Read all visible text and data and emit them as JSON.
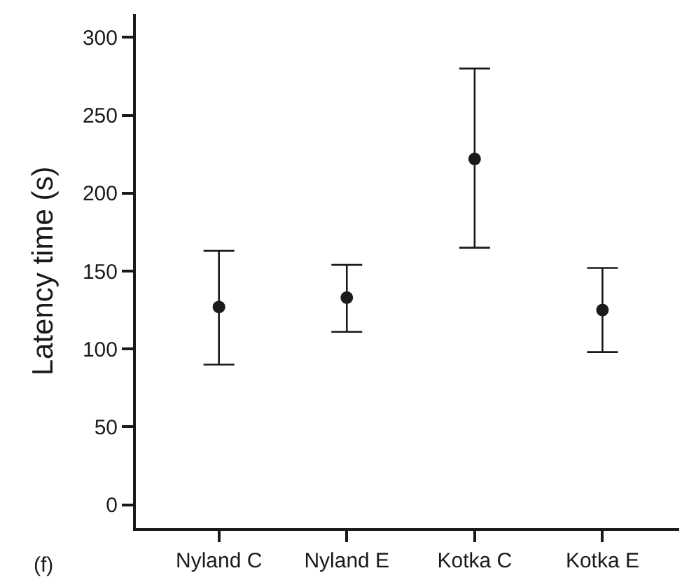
{
  "chart_data": {
    "type": "scatter",
    "ylabel": "Latency time (s)",
    "annotations": [
      "(f)"
    ],
    "categories": [
      "Nyland C",
      "Nyland E",
      "Kotka C",
      "Kotka E"
    ],
    "series": [
      {
        "color": "#1a1a1a",
        "values": [
          127,
          133,
          222,
          125
        ],
        "errors": [
          [
            90,
            163
          ],
          [
            111,
            154
          ],
          [
            165,
            280
          ],
          [
            98,
            152
          ]
        ]
      }
    ],
    "ylim": [
      -15,
      315
    ],
    "yticks": [
      0,
      50,
      100,
      150,
      200,
      250,
      300
    ],
    "marker": "circle"
  }
}
